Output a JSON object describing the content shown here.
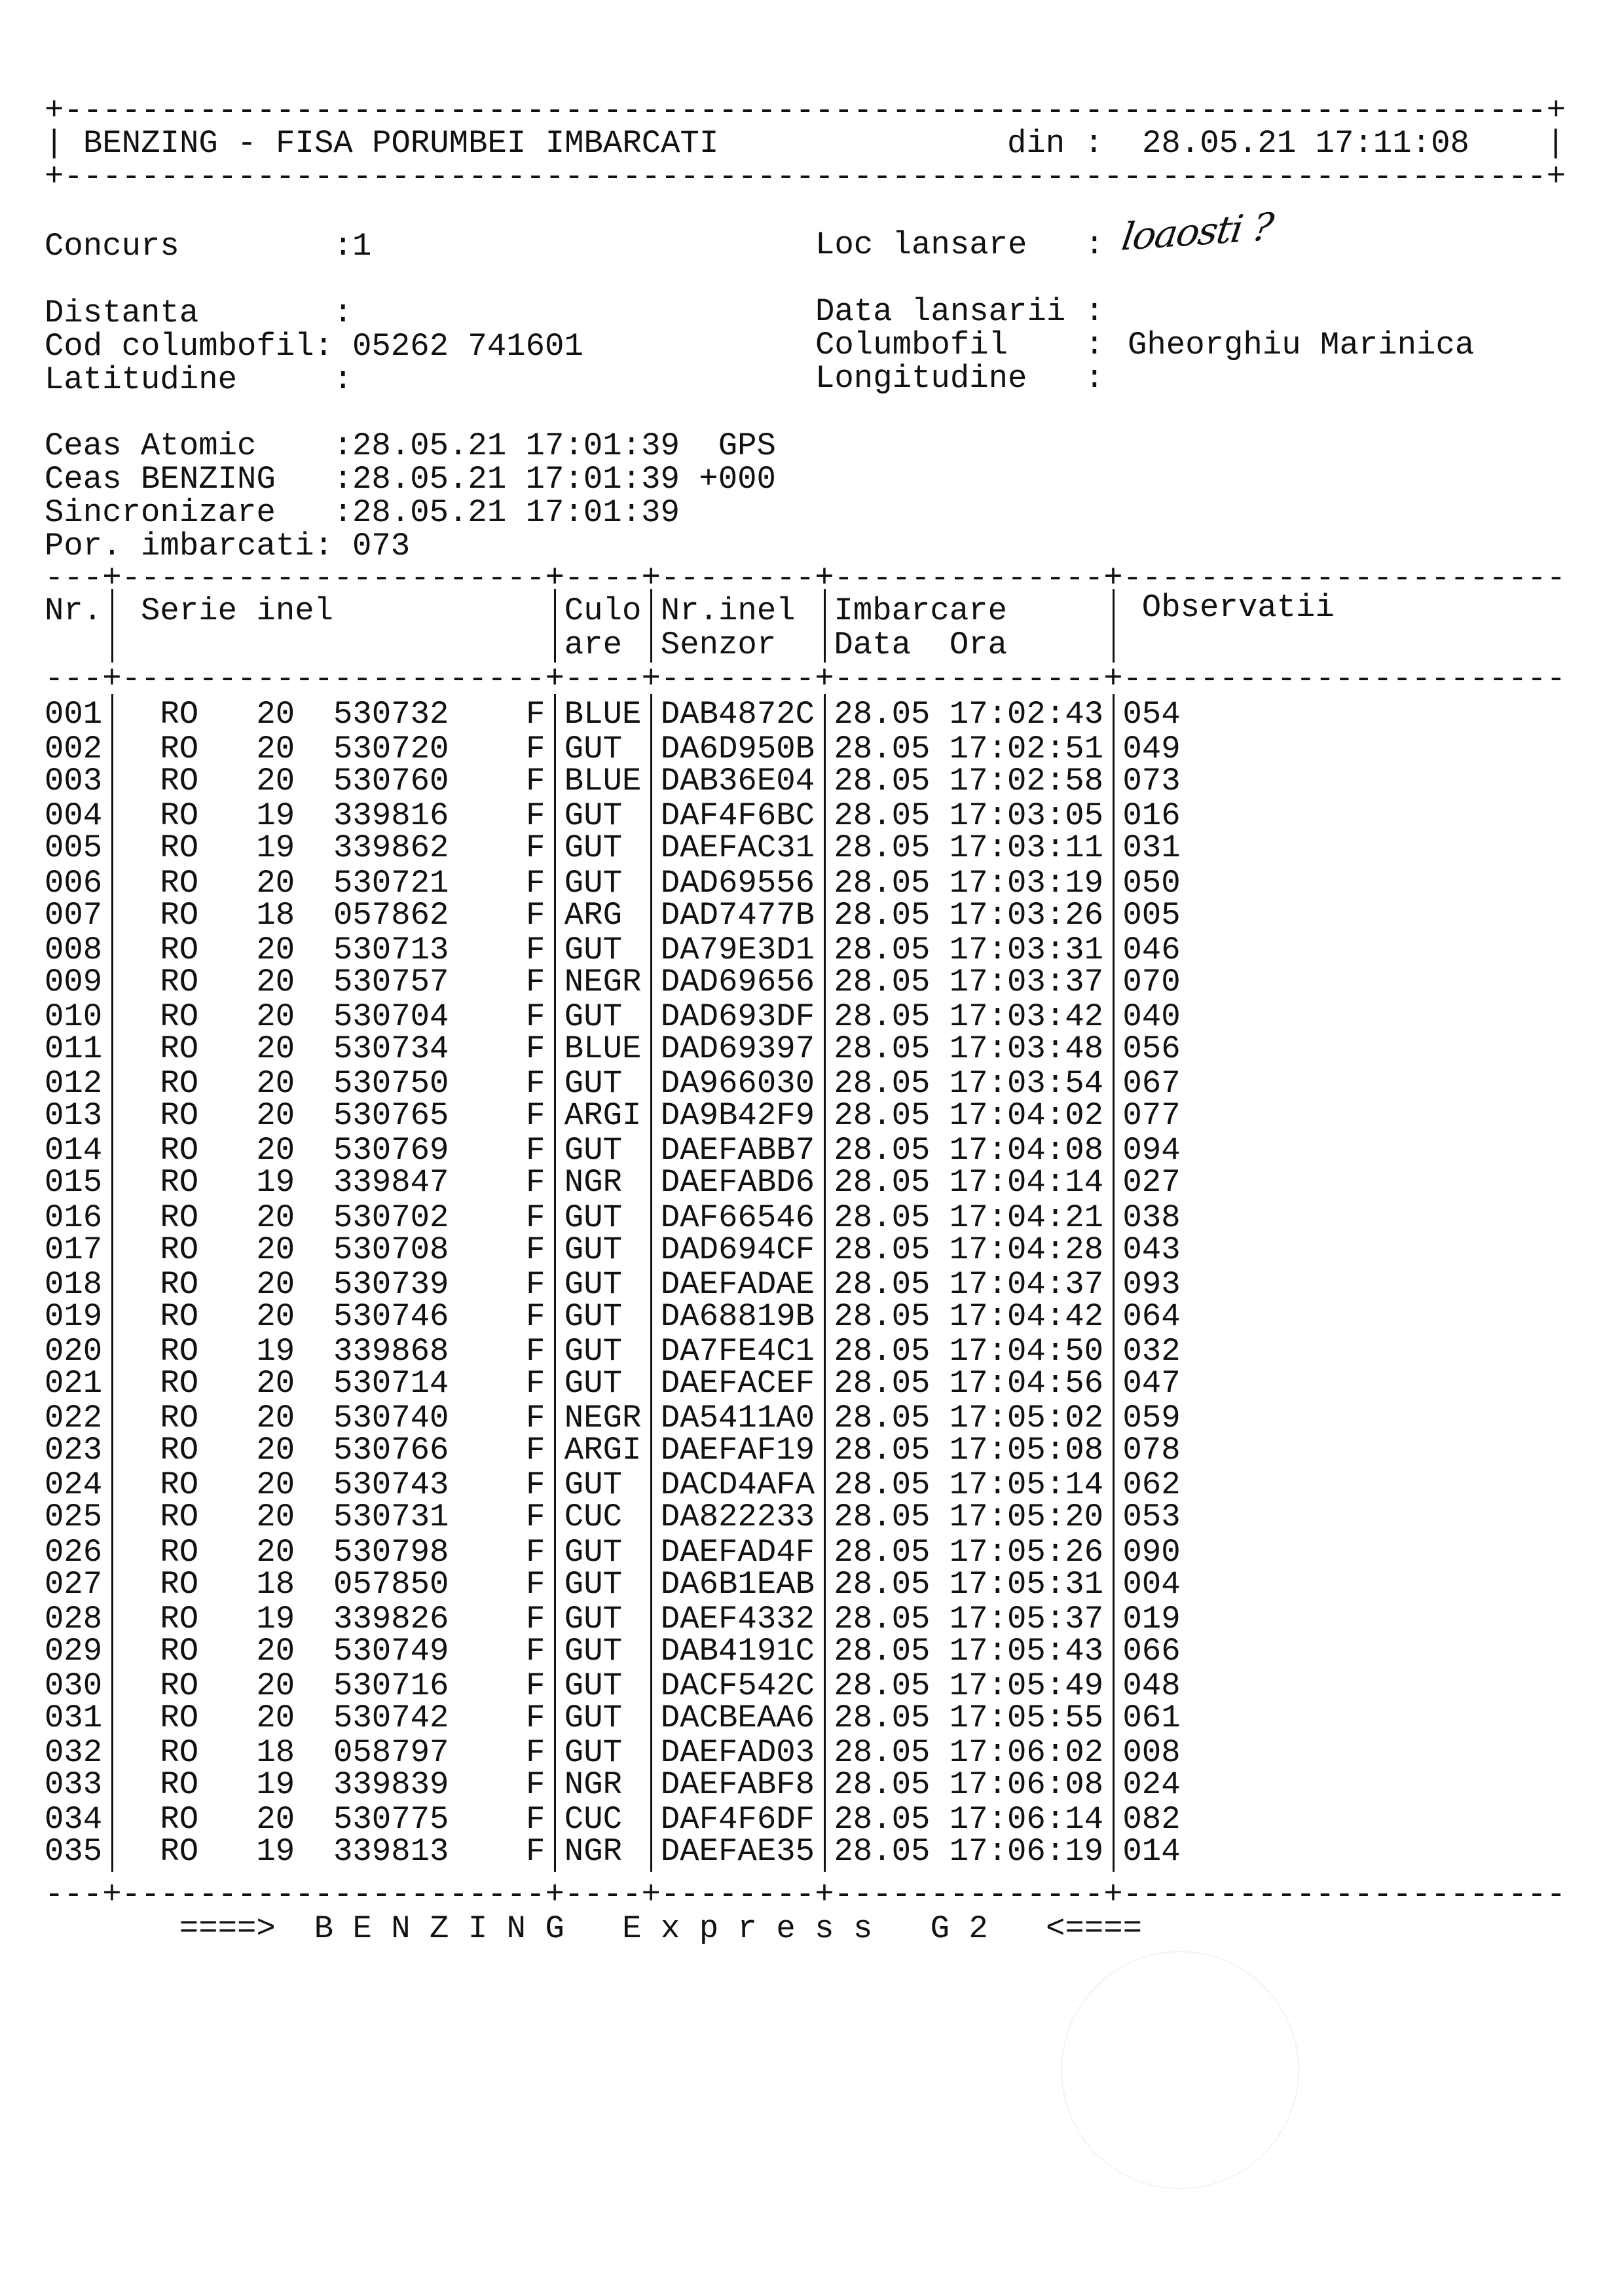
{
  "header": {
    "title": "BENZING - FISA PORUMBEI IMBARCATI",
    "din_label": "din :",
    "din_value": "28.05.21 17:11:08"
  },
  "info": {
    "concurs_label": "Concurs        :",
    "concurs_value": "1",
    "loc_lansare_label": "Loc lansare   :",
    "loc_lansare_value_handwritten": "loaosti ?",
    "distanta_label": "Distanta       :",
    "data_lansarii_label": "Data lansarii :",
    "cod_label": "Cod columbofil:",
    "cod_value": "05262 741601",
    "columbofil_label": "Columbofil    :",
    "columbofil_value": "Gheorghiu Marinica",
    "latitudine_label": "Latitudine     :",
    "longitudine_label": "Longitudine   :",
    "ceas_atomic_label": "Ceas Atomic    :",
    "ceas_atomic_value": "28.05.21 17:01:39  GPS",
    "ceas_benzing_label": "Ceas BENZING   :",
    "ceas_benzing_value": "28.05.21 17:01:39 +000",
    "sincronizare_label": "Sincronizare   :",
    "sincronizare_value": "28.05.21 17:01:39",
    "por_label": "Por. imbarcati:",
    "por_value": "073"
  },
  "table": {
    "headers": {
      "nr": "Nr.",
      "serie": "Serie inel",
      "culo1": "Culo",
      "culo2": "are",
      "nrinel1": "Nr.inel",
      "nrinel2": "Senzor",
      "imbarcare1": "Imbarcare",
      "imbarcare2": "Data  Ora",
      "observatii": "Observatii"
    },
    "rows": [
      [
        "001",
        "RO",
        "20",
        "530732",
        "F",
        "BLUE",
        "DAB4872C",
        "28.05",
        "17:02:43",
        "054"
      ],
      [
        "002",
        "RO",
        "20",
        "530720",
        "F",
        "GUT",
        "DA6D950B",
        "28.05",
        "17:02:51",
        "049"
      ],
      [
        "003",
        "RO",
        "20",
        "530760",
        "F",
        "BLUE",
        "DAB36E04",
        "28.05",
        "17:02:58",
        "073"
      ],
      [
        "004",
        "RO",
        "19",
        "339816",
        "F",
        "GUT",
        "DAF4F6BC",
        "28.05",
        "17:03:05",
        "016"
      ],
      [
        "005",
        "RO",
        "19",
        "339862",
        "F",
        "GUT",
        "DAEFAC31",
        "28.05",
        "17:03:11",
        "031"
      ],
      [
        "006",
        "RO",
        "20",
        "530721",
        "F",
        "GUT",
        "DAD69556",
        "28.05",
        "17:03:19",
        "050"
      ],
      [
        "007",
        "RO",
        "18",
        "057862",
        "F",
        "ARG",
        "DAD7477B",
        "28.05",
        "17:03:26",
        "005"
      ],
      [
        "008",
        "RO",
        "20",
        "530713",
        "F",
        "GUT",
        "DA79E3D1",
        "28.05",
        "17:03:31",
        "046"
      ],
      [
        "009",
        "RO",
        "20",
        "530757",
        "F",
        "NEGR",
        "DAD69656",
        "28.05",
        "17:03:37",
        "070"
      ],
      [
        "010",
        "RO",
        "20",
        "530704",
        "F",
        "GUT",
        "DAD693DF",
        "28.05",
        "17:03:42",
        "040"
      ],
      [
        "011",
        "RO",
        "20",
        "530734",
        "F",
        "BLUE",
        "DAD69397",
        "28.05",
        "17:03:48",
        "056"
      ],
      [
        "012",
        "RO",
        "20",
        "530750",
        "F",
        "GUT",
        "DA966030",
        "28.05",
        "17:03:54",
        "067"
      ],
      [
        "013",
        "RO",
        "20",
        "530765",
        "F",
        "ARGI",
        "DA9B42F9",
        "28.05",
        "17:04:02",
        "077"
      ],
      [
        "014",
        "RO",
        "20",
        "530769",
        "F",
        "GUT",
        "DAEFABB7",
        "28.05",
        "17:04:08",
        "094"
      ],
      [
        "015",
        "RO",
        "19",
        "339847",
        "F",
        "NGR",
        "DAEFABD6",
        "28.05",
        "17:04:14",
        "027"
      ],
      [
        "016",
        "RO",
        "20",
        "530702",
        "F",
        "GUT",
        "DAF66546",
        "28.05",
        "17:04:21",
        "038"
      ],
      [
        "017",
        "RO",
        "20",
        "530708",
        "F",
        "GUT",
        "DAD694CF",
        "28.05",
        "17:04:28",
        "043"
      ],
      [
        "018",
        "RO",
        "20",
        "530739",
        "F",
        "GUT",
        "DAEFADAE",
        "28.05",
        "17:04:37",
        "093"
      ],
      [
        "019",
        "RO",
        "20",
        "530746",
        "F",
        "GUT",
        "DA68819B",
        "28.05",
        "17:04:42",
        "064"
      ],
      [
        "020",
        "RO",
        "19",
        "339868",
        "F",
        "GUT",
        "DA7FE4C1",
        "28.05",
        "17:04:50",
        "032"
      ],
      [
        "021",
        "RO",
        "20",
        "530714",
        "F",
        "GUT",
        "DAEFACEF",
        "28.05",
        "17:04:56",
        "047"
      ],
      [
        "022",
        "RO",
        "20",
        "530740",
        "F",
        "NEGR",
        "DA5411A0",
        "28.05",
        "17:05:02",
        "059"
      ],
      [
        "023",
        "RO",
        "20",
        "530766",
        "F",
        "ARGI",
        "DAEFAF19",
        "28.05",
        "17:05:08",
        "078"
      ],
      [
        "024",
        "RO",
        "20",
        "530743",
        "F",
        "GUT",
        "DACD4AFA",
        "28.05",
        "17:05:14",
        "062"
      ],
      [
        "025",
        "RO",
        "20",
        "530731",
        "F",
        "CUC",
        "DA822233",
        "28.05",
        "17:05:20",
        "053"
      ],
      [
        "026",
        "RO",
        "20",
        "530798",
        "F",
        "GUT",
        "DAEFAD4F",
        "28.05",
        "17:05:26",
        "090"
      ],
      [
        "027",
        "RO",
        "18",
        "057850",
        "F",
        "GUT",
        "DA6B1EAB",
        "28.05",
        "17:05:31",
        "004"
      ],
      [
        "028",
        "RO",
        "19",
        "339826",
        "F",
        "GUT",
        "DAEF4332",
        "28.05",
        "17:05:37",
        "019"
      ],
      [
        "029",
        "RO",
        "20",
        "530749",
        "F",
        "GUT",
        "DAB4191C",
        "28.05",
        "17:05:43",
        "066"
      ],
      [
        "030",
        "RO",
        "20",
        "530716",
        "F",
        "GUT",
        "DACF542C",
        "28.05",
        "17:05:49",
        "048"
      ],
      [
        "031",
        "RO",
        "20",
        "530742",
        "F",
        "GUT",
        "DACBEAA6",
        "28.05",
        "17:05:55",
        "061"
      ],
      [
        "032",
        "RO",
        "18",
        "058797",
        "F",
        "GUT",
        "DAEFAD03",
        "28.05",
        "17:06:02",
        "008"
      ],
      [
        "033",
        "RO",
        "19",
        "339839",
        "F",
        "NGR",
        "DAEFABF8",
        "28.05",
        "17:06:08",
        "024"
      ],
      [
        "034",
        "RO",
        "20",
        "530775",
        "F",
        "CUC",
        "DAF4F6DF",
        "28.05",
        "17:06:14",
        "082"
      ],
      [
        "035",
        "RO",
        "19",
        "339813",
        "F",
        "NGR",
        "DAEFAE35",
        "28.05",
        "17:06:19",
        "014"
      ]
    ]
  },
  "footer": {
    "text": "====>  B E N Z I N G   E x p r e s s   G 2   <===="
  }
}
